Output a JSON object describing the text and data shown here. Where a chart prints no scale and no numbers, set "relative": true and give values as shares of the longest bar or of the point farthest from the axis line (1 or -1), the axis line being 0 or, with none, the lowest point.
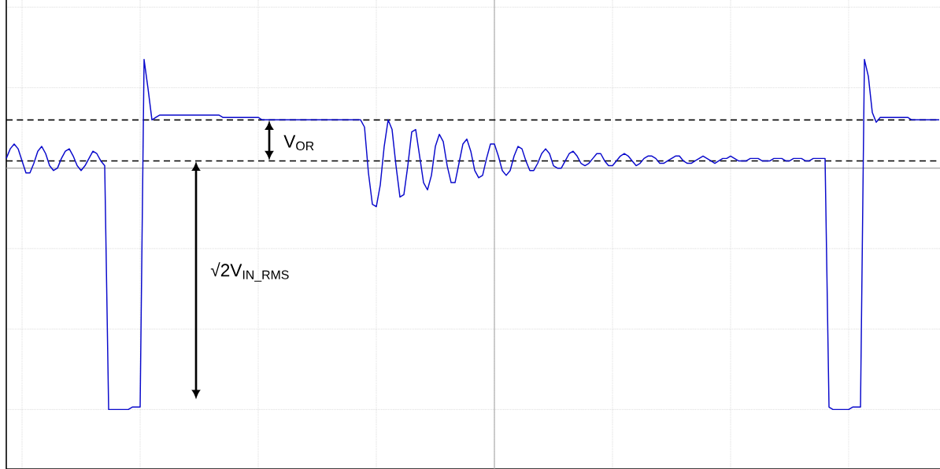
{
  "chart_data": {
    "type": "line",
    "relative": true,
    "grid": true,
    "color": "#0a0acc",
    "categories": [
      null,
      null,
      null,
      null,
      null,
      null,
      null,
      null,
      null,
      null,
      null,
      null,
      null,
      null,
      null,
      null,
      null,
      null,
      null,
      null,
      null,
      null,
      null,
      null,
      null,
      null,
      null,
      null,
      null,
      null,
      null,
      null,
      null,
      null,
      null,
      null,
      null,
      null,
      null,
      null,
      null,
      null,
      null,
      null,
      null,
      null,
      null,
      null,
      null,
      null,
      null,
      null,
      null,
      null,
      null,
      null,
      null,
      null,
      null,
      null,
      null,
      null,
      null,
      null,
      null,
      null,
      null,
      null,
      null,
      null,
      null,
      null,
      null,
      null,
      null,
      null,
      null,
      null,
      null,
      null,
      null,
      null,
      null,
      null,
      null,
      null,
      null,
      null,
      null,
      null,
      null,
      null,
      null,
      null,
      null,
      null,
      null,
      null,
      null,
      null,
      null,
      null,
      null,
      null,
      null,
      null,
      null,
      null,
      null,
      null,
      null,
      null,
      null,
      null,
      null,
      null,
      null,
      null,
      null,
      null,
      null,
      null,
      null,
      null,
      null,
      null,
      null,
      null,
      null,
      null,
      null,
      null,
      null,
      null,
      null,
      null,
      null,
      null,
      null,
      null,
      null,
      null,
      null,
      null,
      null,
      null,
      null,
      null,
      null,
      null,
      null,
      null,
      null,
      null,
      null,
      null,
      null,
      null,
      null,
      null,
      null,
      null,
      null,
      null,
      null,
      null,
      null,
      null,
      null,
      null,
      null,
      null,
      null,
      null,
      null,
      null,
      null,
      null,
      null,
      null,
      null,
      null,
      null,
      null,
      null,
      null,
      null,
      null,
      null,
      null,
      null,
      null,
      null,
      null,
      null,
      null,
      null,
      null,
      null,
      null,
      null,
      null,
      null,
      null,
      null,
      null,
      null,
      null,
      null,
      null,
      null,
      null,
      null,
      null,
      null,
      null,
      null,
      null,
      null,
      null,
      null,
      null,
      null,
      null,
      null,
      null,
      null,
      null,
      null,
      null,
      null,
      null,
      null,
      null,
      null,
      null,
      null,
      null
    ],
    "values": [
      0.04,
      0.08,
      0.1,
      0.08,
      0.03,
      -0.02,
      -0.02,
      0.02,
      0.07,
      0.09,
      0.06,
      0.01,
      -0.01,
      0.0,
      0.04,
      0.07,
      0.08,
      0.05,
      0.01,
      -0.01,
      0.01,
      0.04,
      0.07,
      0.06,
      0.03,
      0.01,
      -1.0,
      -1.0,
      -1.0,
      -1.0,
      -1.0,
      -1.0,
      -0.99,
      -0.99,
      -0.99,
      0.45,
      0.33,
      0.2,
      0.21,
      0.22,
      0.22,
      0.22,
      0.22,
      0.22,
      0.22,
      0.22,
      0.22,
      0.22,
      0.22,
      0.22,
      0.22,
      0.22,
      0.22,
      0.22,
      0.22,
      0.21,
      0.21,
      0.21,
      0.21,
      0.21,
      0.21,
      0.21,
      0.21,
      0.21,
      0.21,
      0.2,
      0.2,
      0.2,
      0.2,
      0.2,
      0.2,
      0.2,
      0.2,
      0.2,
      0.2,
      0.2,
      0.2,
      0.2,
      0.2,
      0.2,
      0.2,
      0.2,
      0.2,
      0.2,
      0.2,
      0.2,
      0.2,
      0.2,
      0.2,
      0.2,
      0.2,
      0.17,
      -0.02,
      -0.15,
      -0.16,
      -0.07,
      0.09,
      0.2,
      0.16,
      0.01,
      -0.12,
      -0.11,
      0.01,
      0.15,
      0.16,
      0.05,
      -0.06,
      -0.09,
      -0.03,
      0.09,
      0.14,
      0.11,
      0.01,
      -0.06,
      -0.06,
      0.02,
      0.1,
      0.12,
      0.07,
      -0.01,
      -0.04,
      -0.03,
      0.04,
      0.1,
      0.1,
      0.05,
      -0.01,
      -0.03,
      -0.01,
      0.05,
      0.09,
      0.08,
      0.03,
      -0.01,
      -0.01,
      0.02,
      0.06,
      0.08,
      0.06,
      0.01,
      0.0,
      0.0,
      0.03,
      0.06,
      0.07,
      0.05,
      0.02,
      0.01,
      0.02,
      0.04,
      0.06,
      0.06,
      0.03,
      0.01,
      0.01,
      0.03,
      0.05,
      0.06,
      0.05,
      0.03,
      0.01,
      0.02,
      0.04,
      0.05,
      0.05,
      0.04,
      0.02,
      0.02,
      0.03,
      0.04,
      0.05,
      0.05,
      0.03,
      0.02,
      0.02,
      0.03,
      0.04,
      0.05,
      0.04,
      0.03,
      0.02,
      0.03,
      0.04,
      0.04,
      0.05,
      0.04,
      0.03,
      0.03,
      0.03,
      0.04,
      0.04,
      0.04,
      0.03,
      0.03,
      0.03,
      0.04,
      0.04,
      0.04,
      0.03,
      0.03,
      0.04,
      0.04,
      0.04,
      0.03,
      0.03,
      0.04,
      0.04,
      0.04,
      0.04,
      -0.99,
      -1.0,
      -1.0,
      -1.0,
      -1.0,
      -1.0,
      -0.99,
      -0.99,
      -0.99,
      0.45,
      0.38,
      0.23,
      0.19,
      0.21,
      0.21,
      0.21,
      0.21,
      0.21,
      0.21,
      0.21,
      0.21,
      0.2,
      0.2,
      0.2,
      0.2,
      0.2,
      0.2,
      0.2,
      0.2
    ],
    "ref_lines": [
      {
        "axis": "y",
        "value": 0.2,
        "color": "#000000",
        "line_style": "dashed"
      },
      {
        "axis": "y",
        "value": 0.03,
        "color": "#000000",
        "line_style": "dashed"
      }
    ],
    "annotations": [
      "V$_{OR}$",
      "√2V$_{IN_RMS}$"
    ]
  }
}
